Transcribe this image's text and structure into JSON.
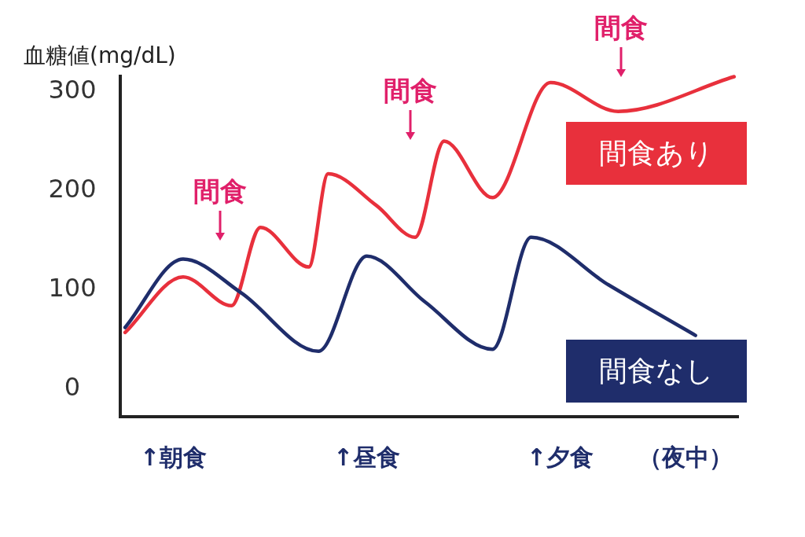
{
  "chart_data": {
    "type": "line",
    "ylabel": "血糖値(mg/dL)",
    "categories": [
      null,
      null,
      null,
      null,
      null,
      "↑朝食",
      null,
      null,
      null,
      null,
      null,
      null,
      null,
      null,
      null,
      null,
      null,
      null,
      null,
      null,
      null,
      null,
      null,
      null,
      null,
      "↑昼食",
      null,
      null,
      null,
      null,
      null,
      null,
      null,
      null,
      null,
      null,
      null,
      null,
      null,
      null,
      null,
      null,
      null,
      null,
      null,
      "↑夕食",
      null,
      null,
      null,
      null,
      null,
      null,
      null,
      null,
      null,
      null,
      null,
      null,
      "（夜中）",
      null,
      null,
      null,
      null,
      null
    ],
    "ylim": [
      -30,
      315
    ],
    "yticks": [
      0,
      100,
      200,
      300
    ],
    "grid": false,
    "marker": "none",
    "line_style": "solid",
    "series": [
      {
        "name": "間食あり",
        "color": "#e8303c",
        "values": [
          55,
          null,
          null,
          null,
          null,
          null,
          111,
          null,
          null,
          null,
          null,
          82,
          null,
          null,
          161,
          null,
          null,
          null,
          null,
          121,
          null,
          215,
          null,
          null,
          null,
          null,
          183,
          null,
          null,
          null,
          151,
          null,
          null,
          248,
          null,
          null,
          null,
          null,
          191,
          null,
          null,
          null,
          null,
          null,
          307,
          null,
          null,
          null,
          null,
          null,
          null,
          278,
          null,
          null,
          null,
          null,
          null,
          null,
          null,
          null,
          null,
          null,
          null,
          313
        ]
      },
      {
        "name": "間食なし",
        "color": "#1f2d6b",
        "values": [
          60,
          null,
          null,
          null,
          null,
          null,
          129,
          null,
          null,
          null,
          null,
          null,
          95,
          null,
          null,
          null,
          null,
          null,
          null,
          null,
          36,
          null,
          null,
          null,
          null,
          132,
          null,
          null,
          null,
          null,
          null,
          86,
          null,
          null,
          null,
          null,
          null,
          null,
          38,
          null,
          null,
          null,
          151,
          null,
          null,
          null,
          null,
          null,
          null,
          null,
          103,
          null,
          null,
          null,
          null,
          null,
          null,
          null,
          null,
          52,
          null,
          null,
          null,
          null
        ]
      }
    ],
    "annotations": [
      "間食",
      "間食",
      "間食"
    ]
  }
}
